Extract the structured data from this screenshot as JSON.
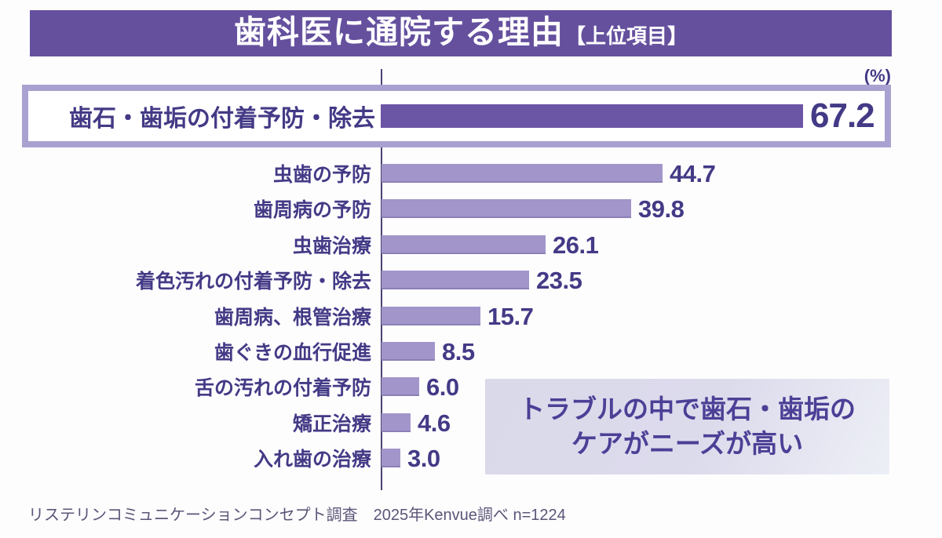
{
  "banner": {
    "title": "歯科医に通院する理由",
    "suffix": "【上位項目】"
  },
  "chart_data": {
    "type": "bar",
    "orientation": "horizontal",
    "unit": "(%)",
    "categories": [
      "歯石・歯垢の付着予防・除去",
      "虫歯の予防",
      "歯周病の予防",
      "虫歯治療",
      "着色汚れの付着予防・除去",
      "歯周病、根管治療",
      "歯ぐきの血行促進",
      "舌の汚れの付着予防",
      "矯正治療",
      "入れ歯の治療"
    ],
    "values": [
      67.2,
      44.7,
      39.8,
      26.1,
      23.5,
      15.7,
      8.5,
      6.0,
      4.6,
      3.0
    ],
    "highlight_index": 0,
    "xlim": [
      0,
      70
    ],
    "grid": false,
    "legend": false
  },
  "annotation": {
    "lines": [
      "トラブルの中で歯石・歯垢の",
      "ケアがニーズが高い"
    ]
  },
  "footer": {
    "source": "リステリンコミュニケーションコンセプト調査　2025年Kenvue調べ n=1224"
  },
  "colors": {
    "banner_bg": "#65509e",
    "bar_highlight": "#6b55a5",
    "bar_normal": "#a295ca",
    "box_border": "#a9a2d0",
    "text": "#433a86",
    "axis": "#4a4370",
    "annotation_bg_start": "#dad9ea",
    "annotation_bg_end": "#edeff6",
    "annotation_text": "#4c3f96",
    "footer_text": "#5b5577"
  }
}
